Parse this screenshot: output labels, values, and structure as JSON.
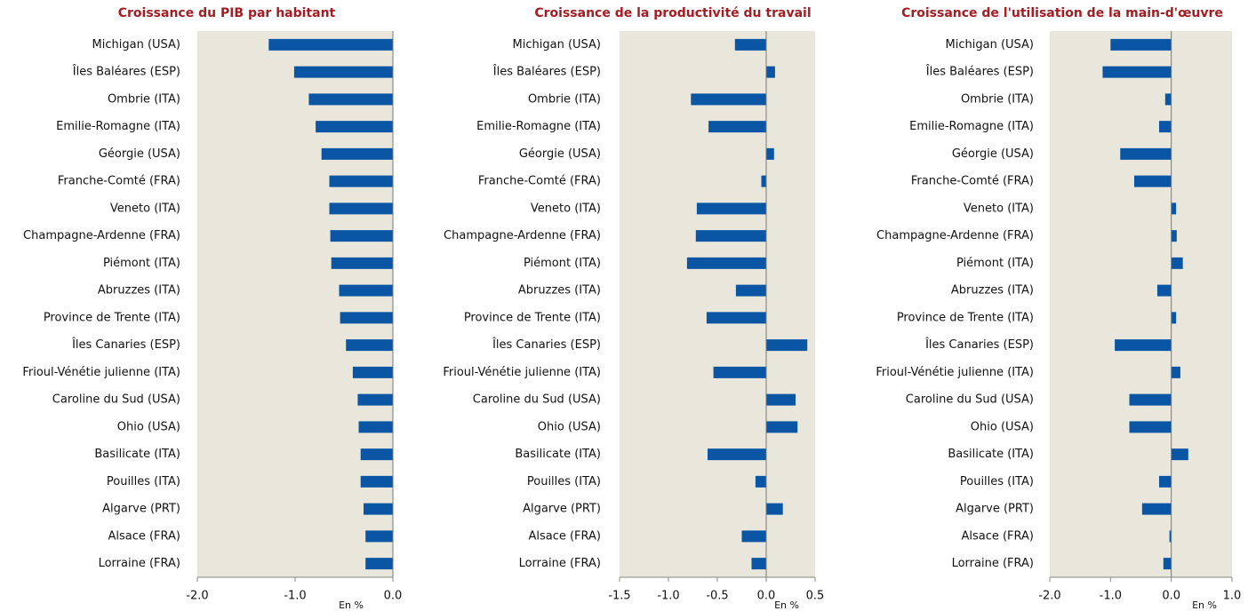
{
  "chart_data": [
    {
      "type": "bar",
      "orientation": "horizontal",
      "title": "Croissance du PIB par habitant",
      "x_label": "En %",
      "categories": [
        "Michigan (USA)",
        "Îles Baléares (ESP)",
        "Ombrie (ITA)",
        "Emilie-Romagne (ITA)",
        "Géorgie (USA)",
        "Franche-Comté (FRA)",
        "Veneto (ITA)",
        "Champagne-Ardenne (FRA)",
        "Piémont (ITA)",
        "Abruzzes (ITA)",
        "Province de Trente (ITA)",
        "Îles Canaries (ESP)",
        "Frioul-Vénétie julienne (ITA)",
        "Caroline du Sud (USA)",
        "Ohio (USA)",
        "Basilicate  (ITA)",
        "Pouilles (ITA)",
        "Algarve (PRT)",
        "Alsace  (FRA)",
        "Lorraine (FRA)"
      ],
      "values": [
        -1.27,
        -1.01,
        -0.86,
        -0.79,
        -0.73,
        -0.65,
        -0.65,
        -0.64,
        -0.63,
        -0.55,
        -0.54,
        -0.48,
        -0.41,
        -0.36,
        -0.35,
        -0.33,
        -0.33,
        -0.3,
        -0.28,
        -0.28
      ],
      "color": "#0b56a4",
      "xlim": [
        -2.0,
        0.0
      ],
      "xticks": [
        {
          "value": -2,
          "label": "-2.0"
        },
        {
          "value": -1,
          "label": "-1.0"
        },
        {
          "value": 0,
          "label": "0.0"
        }
      ]
    },
    {
      "type": "bar",
      "orientation": "horizontal",
      "title": "Croissance de la productivité du travail",
      "x_label": "En %",
      "categories": [
        "Michigan (USA)",
        "Îles Baléares (ESP)",
        "Ombrie (ITA)",
        "Emilie-Romagne (ITA)",
        "Géorgie (USA)",
        "Franche-Comté (FRA)",
        "Veneto (ITA)",
        "Champagne-Ardenne (FRA)",
        "Piémont (ITA)",
        "Abruzzes (ITA)",
        "Province de Trente (ITA)",
        "Îles Canaries (ESP)",
        "Frioul-Vénétie julienne (ITA)",
        "Caroline du Sud (USA)",
        "Ohio (USA)",
        "Basilicate  (ITA)",
        "Pouilles (ITA)",
        "Algarve (PRT)",
        "Alsace  (FRA)",
        "Lorraine (FRA)"
      ],
      "values": [
        -0.32,
        0.09,
        -0.77,
        -0.59,
        0.08,
        -0.05,
        -0.71,
        -0.72,
        -0.81,
        -0.31,
        -0.61,
        0.42,
        -0.54,
        0.3,
        0.32,
        -0.6,
        -0.11,
        0.17,
        -0.25,
        -0.15
      ],
      "color": "#0b56a4",
      "xlim": [
        -1.5,
        0.5
      ],
      "xticks": [
        -1.5,
        {
          "value": -1,
          "label": "-1.0"
        },
        -0.5,
        {
          "value": 0,
          "label": "0.0"
        },
        0.5
      ]
    },
    {
      "type": "bar",
      "orientation": "horizontal",
      "title": "Croissance de l'utilisation de la main-d'œuvre",
      "x_label": "En %",
      "categories": [
        "Michigan (USA)",
        "Îles Baléares (ESP)",
        "Ombrie (ITA)",
        "Emilie-Romagne (ITA)",
        "Géorgie (USA)",
        "Franche-Comté (FRA)",
        "Veneto (ITA)",
        "Champagne-Ardenne (FRA)",
        "Piémont (ITA)",
        "Abruzzes (ITA)",
        "Province de Trente (ITA)",
        "Îles Canaries (ESP)",
        "Frioul-Vénétie julienne (ITA)",
        "Caroline du Sud (USA)",
        "Ohio (USA)",
        "Basilicate  (ITA)",
        "Pouilles (ITA)",
        "Algarve (PRT)",
        "Alsace  (FRA)",
        "Lorraine (FRA)"
      ],
      "values": [
        -1.0,
        -1.13,
        -0.1,
        -0.2,
        -0.84,
        -0.61,
        0.08,
        0.09,
        0.19,
        -0.23,
        0.08,
        -0.93,
        0.15,
        -0.69,
        -0.69,
        0.28,
        -0.2,
        -0.48,
        -0.03,
        -0.13
      ],
      "color": "#0b56a4",
      "xlim": [
        -2.0,
        1.0
      ],
      "xticks": [
        {
          "value": -2,
          "label": "-2.0"
        },
        {
          "value": -1,
          "label": "-1.0"
        },
        {
          "value": 0,
          "label": "0.0"
        },
        {
          "value": 1,
          "label": "1.0"
        }
      ]
    }
  ]
}
